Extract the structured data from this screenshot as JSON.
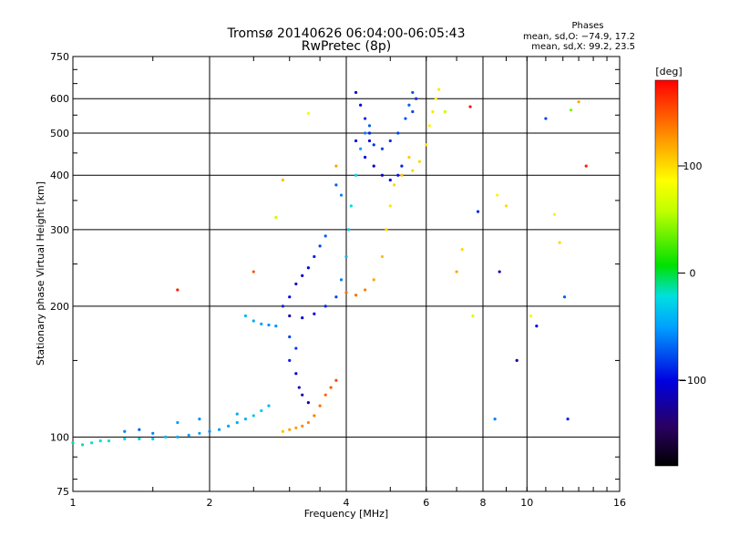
{
  "chart_data": {
    "type": "scatter",
    "title": "Tromsø 20140626 06:04:00-06:05:43",
    "subtitle": "RwPretec (8p)",
    "xlabel": "Frequency [MHz]",
    "ylabel": "Stationary phase Virtual Height [km]",
    "x_scale": "log2",
    "y_scale": "log",
    "xlim": [
      1,
      16
    ],
    "ylim": [
      75,
      750
    ],
    "x_ticks": [
      1,
      2,
      4,
      6,
      8,
      10,
      16
    ],
    "x_tick_labels": [
      "1",
      "2",
      "4",
      "6",
      "8",
      "10",
      "16"
    ],
    "y_ticks": [
      75,
      100,
      200,
      300,
      400,
      500,
      600,
      750
    ],
    "y_tick_labels": [
      "75",
      "100",
      "200",
      "300",
      "400",
      "500",
      "600",
      "750"
    ],
    "grid": true,
    "stats": {
      "heading": "Phases",
      "line_o": "mean, sd,O: −74.9, 17.2",
      "line_x": "mean, sd,X:  99.2, 23.5"
    },
    "colorbar": {
      "label": "[deg]",
      "range": [
        -180,
        180
      ],
      "ticks": [
        100,
        0,
        -100
      ],
      "tick_labels": [
        "100",
        "0",
        "−100"
      ],
      "colormap": "rainbow"
    },
    "series": [
      {
        "role": "E/F1 low trace",
        "points": [
          [
            1.0,
            97,
            -10
          ],
          [
            1.05,
            96,
            -15
          ],
          [
            1.1,
            97,
            -20
          ],
          [
            1.15,
            98,
            -25
          ],
          [
            1.2,
            98,
            -20
          ],
          [
            1.3,
            99,
            -25
          ],
          [
            1.4,
            99,
            -30
          ],
          [
            1.5,
            99,
            -30
          ],
          [
            1.6,
            100,
            -40
          ],
          [
            1.7,
            100,
            -45
          ],
          [
            1.8,
            101,
            -50
          ],
          [
            1.9,
            102,
            -50
          ],
          [
            2.0,
            103,
            -55
          ],
          [
            2.1,
            104,
            -50
          ],
          [
            2.2,
            106,
            -50
          ],
          [
            2.3,
            108,
            -45
          ],
          [
            2.4,
            110,
            -40
          ],
          [
            2.5,
            112,
            -35
          ],
          [
            2.6,
            115,
            -30
          ],
          [
            2.7,
            118,
            -40
          ],
          [
            1.3,
            103,
            -60
          ],
          [
            1.4,
            104,
            -70
          ],
          [
            1.5,
            102,
            -60
          ],
          [
            1.7,
            108,
            -50
          ],
          [
            1.9,
            110,
            -55
          ],
          [
            2.3,
            113,
            -45
          ]
        ]
      },
      {
        "role": "F1 cusp region",
        "points": [
          [
            2.4,
            190,
            -40
          ],
          [
            2.5,
            185,
            -45
          ],
          [
            2.6,
            182,
            -50
          ],
          [
            2.7,
            181,
            -55
          ],
          [
            2.8,
            180,
            -55
          ],
          [
            2.9,
            200,
            -90
          ],
          [
            3.0,
            210,
            -100
          ],
          [
            3.1,
            225,
            -110
          ],
          [
            3.2,
            235,
            -110
          ],
          [
            3.3,
            245,
            -100
          ],
          [
            3.4,
            260,
            -90
          ],
          [
            3.5,
            275,
            -80
          ],
          [
            3.6,
            290,
            -70
          ],
          [
            3.0,
            190,
            -120
          ],
          [
            3.2,
            188,
            -110
          ],
          [
            3.4,
            192,
            -100
          ],
          [
            3.6,
            200,
            -90
          ],
          [
            3.8,
            210,
            -80
          ],
          [
            3.9,
            230,
            -60
          ],
          [
            4.0,
            260,
            -40
          ],
          [
            4.05,
            300,
            -30
          ],
          [
            4.1,
            340,
            -20
          ],
          [
            4.2,
            400,
            -30
          ],
          [
            4.3,
            460,
            -50
          ],
          [
            4.4,
            500,
            -60
          ],
          [
            4.5,
            520,
            -70
          ],
          [
            3.0,
            150,
            -90
          ],
          [
            3.1,
            140,
            -100
          ],
          [
            3.15,
            130,
            -110
          ],
          [
            3.2,
            125,
            -115
          ],
          [
            3.3,
            120,
            -120
          ],
          [
            3.1,
            160,
            -85
          ],
          [
            3.0,
            170,
            -80
          ]
        ]
      },
      {
        "role": "O-mode F2 trace",
        "points": [
          [
            4.2,
            620,
            -110
          ],
          [
            4.3,
            580,
            -100
          ],
          [
            4.4,
            540,
            -90
          ],
          [
            4.5,
            500,
            -90
          ],
          [
            4.6,
            470,
            -85
          ],
          [
            4.8,
            460,
            -80
          ],
          [
            5.0,
            480,
            -85
          ],
          [
            5.2,
            500,
            -80
          ],
          [
            5.4,
            540,
            -75
          ],
          [
            5.5,
            580,
            -70
          ],
          [
            5.6,
            620,
            -75
          ],
          [
            4.4,
            440,
            -100
          ],
          [
            4.6,
            420,
            -110
          ],
          [
            4.8,
            400,
            -105
          ],
          [
            5.0,
            390,
            -100
          ],
          [
            5.2,
            400,
            -95
          ],
          [
            5.3,
            420,
            -90
          ],
          [
            4.2,
            480,
            -95
          ],
          [
            4.5,
            480,
            -100
          ],
          [
            5.6,
            560,
            -80
          ],
          [
            5.7,
            600,
            -85
          ],
          [
            3.8,
            380,
            -70
          ],
          [
            3.9,
            360,
            -60
          ]
        ]
      },
      {
        "role": "X-mode trace",
        "points": [
          [
            2.9,
            103,
            110
          ],
          [
            3.0,
            104,
            120
          ],
          [
            3.1,
            105,
            125
          ],
          [
            3.2,
            106,
            130
          ],
          [
            3.3,
            108,
            130
          ],
          [
            3.4,
            112,
            135
          ],
          [
            3.5,
            118,
            140
          ],
          [
            3.6,
            125,
            145
          ],
          [
            3.7,
            130,
            150
          ],
          [
            3.8,
            135,
            155
          ],
          [
            4.0,
            215,
            140
          ],
          [
            4.2,
            212,
            140
          ],
          [
            4.4,
            218,
            135
          ],
          [
            4.6,
            230,
            120
          ],
          [
            4.8,
            260,
            110
          ],
          [
            4.9,
            300,
            100
          ],
          [
            5.0,
            340,
            95
          ],
          [
            5.1,
            380,
            100
          ],
          [
            5.3,
            400,
            110
          ],
          [
            5.6,
            410,
            100
          ],
          [
            5.8,
            430,
            100
          ],
          [
            6.0,
            470,
            95
          ],
          [
            6.1,
            520,
            90
          ],
          [
            6.2,
            560,
            95
          ],
          [
            6.3,
            600,
            90
          ],
          [
            6.4,
            630,
            95
          ],
          [
            5.5,
            440,
            105
          ]
        ]
      },
      {
        "role": "scattered points",
        "points": [
          [
            1.7,
            218,
            170
          ],
          [
            2.5,
            240,
            150
          ],
          [
            2.8,
            320,
            60
          ],
          [
            2.9,
            390,
            110
          ],
          [
            3.3,
            555,
            80
          ],
          [
            3.8,
            420,
            120
          ],
          [
            6.6,
            560,
            60
          ],
          [
            7.0,
            240,
            120
          ],
          [
            7.2,
            270,
            100
          ],
          [
            7.5,
            575,
            180
          ],
          [
            7.6,
            190,
            70
          ],
          [
            7.8,
            330,
            -90
          ],
          [
            8.5,
            110,
            -60
          ],
          [
            8.6,
            360,
            90
          ],
          [
            8.7,
            240,
            -110
          ],
          [
            9.0,
            340,
            100
          ],
          [
            9.5,
            150,
            -120
          ],
          [
            10.2,
            190,
            80
          ],
          [
            10.5,
            180,
            -100
          ],
          [
            11.0,
            540,
            -80
          ],
          [
            11.5,
            325,
            90
          ],
          [
            11.8,
            280,
            100
          ],
          [
            12.1,
            210,
            -70
          ],
          [
            12.3,
            110,
            -90
          ],
          [
            12.5,
            565,
            40
          ],
          [
            13.0,
            590,
            120
          ],
          [
            13.5,
            420,
            170
          ]
        ]
      }
    ]
  }
}
